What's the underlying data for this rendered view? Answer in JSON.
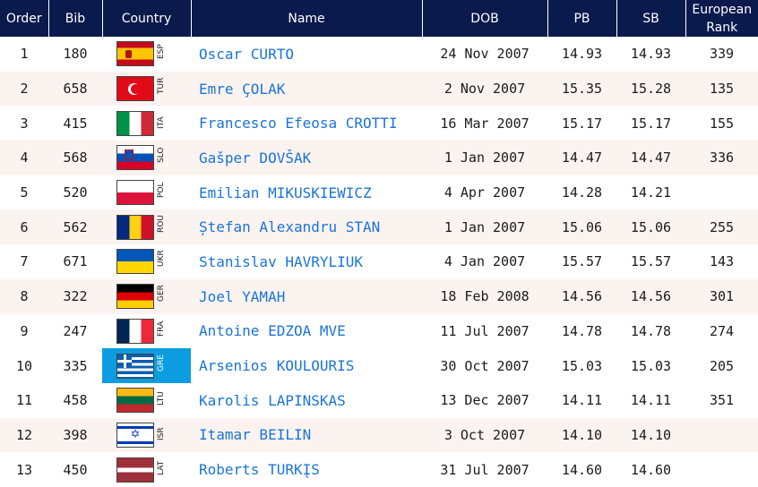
{
  "headers": {
    "order": "Order",
    "bib": "Bib",
    "country": "Country",
    "name": "Name",
    "dob": "DOB",
    "pb": "PB",
    "sb": "SB",
    "rank_line1": "European",
    "rank_line2": "Rank"
  },
  "rows": [
    {
      "order": "1",
      "bib": "180",
      "code": "ESP",
      "flag": "esp",
      "name": "Oscar CURTO",
      "dob": "24 Nov 2007",
      "pb": "14.93",
      "sb": "14.93",
      "rank": "339"
    },
    {
      "order": "2",
      "bib": "658",
      "code": "TUR",
      "flag": "tur",
      "name": "Emre ÇOLAK",
      "dob": "2 Nov 2007",
      "pb": "15.35",
      "sb": "15.28",
      "rank": "135"
    },
    {
      "order": "3",
      "bib": "415",
      "code": "ITA",
      "flag": "ita",
      "name": "Francesco Efeosa CROTTI",
      "dob": "16 Mar 2007",
      "pb": "15.17",
      "sb": "15.17",
      "rank": "155"
    },
    {
      "order": "4",
      "bib": "568",
      "code": "SLO",
      "flag": "slo",
      "name": "Gašper DOVŠAK",
      "dob": "1 Jan 2007",
      "pb": "14.47",
      "sb": "14.47",
      "rank": "336"
    },
    {
      "order": "5",
      "bib": "520",
      "code": "POL",
      "flag": "pol",
      "name": "Emilian MIKUSKIEWICZ",
      "dob": "4 Apr 2007",
      "pb": "14.28",
      "sb": "14.21",
      "rank": ""
    },
    {
      "order": "6",
      "bib": "562",
      "code": "ROU",
      "flag": "rou",
      "name": "Ștefan Alexandru STAN",
      "dob": "1 Jan 2007",
      "pb": "15.06",
      "sb": "15.06",
      "rank": "255"
    },
    {
      "order": "7",
      "bib": "671",
      "code": "UKR",
      "flag": "ukr",
      "name": "Stanislav HAVRYLIUK",
      "dob": "4 Jan 2007",
      "pb": "15.57",
      "sb": "15.57",
      "rank": "143"
    },
    {
      "order": "8",
      "bib": "322",
      "code": "GER",
      "flag": "ger",
      "name": "Joel YAMAH",
      "dob": "18 Feb 2008",
      "pb": "14.56",
      "sb": "14.56",
      "rank": "301"
    },
    {
      "order": "9",
      "bib": "247",
      "code": "FRA",
      "flag": "fra",
      "name": "Antoine EDZOA MVE",
      "dob": "11 Jul 2007",
      "pb": "14.78",
      "sb": "14.78",
      "rank": "274"
    },
    {
      "order": "10",
      "bib": "335",
      "code": "GRE",
      "flag": "gre",
      "name": "Arsenios KOULOURIS",
      "dob": "30 Oct 2007",
      "pb": "15.03",
      "sb": "15.03",
      "rank": "205",
      "highlight": true
    },
    {
      "order": "11",
      "bib": "458",
      "code": "LTU",
      "flag": "ltu",
      "name": "Karolis LAPINSKAS",
      "dob": "13 Dec 2007",
      "pb": "14.11",
      "sb": "14.11",
      "rank": "351"
    },
    {
      "order": "12",
      "bib": "398",
      "code": "ISR",
      "flag": "isr",
      "name": "Itamar BEILIN",
      "dob": "3 Oct 2007",
      "pb": "14.10",
      "sb": "14.10",
      "rank": ""
    },
    {
      "order": "13",
      "bib": "450",
      "code": "LAT",
      "flag": "lat",
      "name": "Roberts TURKĮS",
      "dob": "31 Jul 2007",
      "pb": "14.60",
      "sb": "14.60",
      "rank": ""
    }
  ],
  "colors": {
    "header_bg": "#0a1a4c",
    "name_link": "#1a74d8",
    "highlight_country": "#0b9de0",
    "alt_row": "#fbf3f0"
  }
}
